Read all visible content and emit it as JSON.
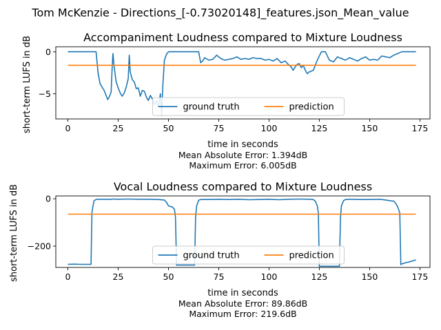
{
  "suptitle": "Tom McKenzie - Directions_[-0.73020148]_features.json_Mean_value",
  "colors": {
    "ground_truth": "#1f77b4",
    "prediction": "#ff7f0e"
  },
  "chart_data": [
    {
      "type": "line",
      "title": "Accompaniment Loudness compared to Mixture Loudness",
      "xlabel": "time in seconds",
      "ylabel": "short-term LUFS in dB",
      "xlim": [
        -6,
        180
      ],
      "ylim": [
        -8,
        0.6
      ],
      "xticks": [
        0,
        25,
        50,
        75,
        100,
        125,
        150,
        175
      ],
      "yticks": [
        0,
        -5
      ],
      "ytick_labels": [
        "0",
        "−5"
      ],
      "legend": "lower-center",
      "errors": [
        "Mean Absolute Error: 1.394dB",
        "Maximum Error: 6.005dB"
      ],
      "series": [
        {
          "name": "ground truth",
          "x": [
            0,
            14,
            15,
            16,
            17,
            18,
            19,
            19.8,
            20.5,
            21.5,
            22,
            22.4,
            23,
            24,
            25,
            26,
            27,
            28,
            29,
            30,
            30.5,
            31,
            32,
            33,
            34,
            35,
            36,
            37,
            38,
            39,
            40,
            41,
            42,
            43,
            44,
            45,
            46,
            46.6,
            47.2,
            48,
            49,
            50,
            55,
            60,
            65,
            66,
            67,
            68,
            70,
            72,
            74,
            76,
            78,
            80,
            82,
            84,
            86,
            88,
            90,
            92,
            94,
            96,
            98,
            100,
            102,
            104,
            106,
            108,
            110,
            111,
            112,
            113,
            114,
            115,
            116,
            117,
            118,
            119,
            120,
            122,
            124,
            126,
            128,
            130,
            132,
            134,
            136,
            138,
            140,
            142,
            144,
            146,
            148,
            150,
            152,
            154,
            156,
            158,
            160,
            162,
            164,
            166,
            170,
            173
          ],
          "y": [
            0,
            0,
            -2.5,
            -3.8,
            -4.2,
            -4.6,
            -5.2,
            -5.7,
            -5.4,
            -4.8,
            -2,
            -0.2,
            -1.8,
            -3.6,
            -4.3,
            -4.9,
            -5.3,
            -4.9,
            -4.2,
            -3.2,
            -0.4,
            -2.4,
            -3.3,
            -3.6,
            -4.4,
            -4.3,
            -5.3,
            -4.6,
            -4.7,
            -5.4,
            -5.8,
            -5.2,
            -5.6,
            -6.3,
            -5.8,
            -6.5,
            -5.0,
            -7.6,
            -4.0,
            -1.0,
            -0.3,
            0,
            0,
            0,
            0,
            -1.3,
            -1.1,
            -0.7,
            -1.0,
            -0.9,
            -0.4,
            -0.8,
            -1.0,
            -0.9,
            -0.8,
            -0.6,
            -0.9,
            -0.8,
            -0.9,
            -0.7,
            -0.8,
            -0.8,
            -1.0,
            -0.9,
            -1.1,
            -0.8,
            -1.3,
            -1.1,
            -1.6,
            -1.8,
            -2.2,
            -1.8,
            -1.5,
            -1.4,
            -1.9,
            -1.6,
            -2.2,
            -2.6,
            -2.4,
            -2.2,
            -1.0,
            0,
            0,
            -1.0,
            -1.2,
            -0.6,
            -0.8,
            -1.0,
            -0.7,
            -0.9,
            -1.1,
            -0.8,
            -0.6,
            -1.0,
            -0.9,
            -1.0,
            -0.5,
            -0.6,
            -0.7,
            -0.4,
            -0.2,
            0,
            0,
            0
          ]
        },
        {
          "name": "prediction",
          "x": [
            0,
            173
          ],
          "y": [
            -1.6,
            -1.6
          ]
        }
      ]
    },
    {
      "type": "line",
      "title": "Vocal Loudness compared to Mixture Loudness",
      "xlabel": "time in seconds",
      "ylabel": "short-term LUFS in dB",
      "xlim": [
        -6,
        180
      ],
      "ylim": [
        -290,
        12
      ],
      "xticks": [
        0,
        25,
        50,
        75,
        100,
        125,
        150,
        175
      ],
      "yticks": [
        0,
        -200
      ],
      "ytick_labels": [
        "0",
        "−200"
      ],
      "legend": "lower-center",
      "errors": [
        "Mean Absolute Error: 89.86dB",
        "Maximum Error: 219.6dB"
      ],
      "series": [
        {
          "name": "ground truth",
          "x": [
            0,
            3,
            6,
            11.5,
            12,
            12.5,
            13,
            14,
            15,
            20,
            21,
            22,
            25,
            30,
            35,
            40,
            45,
            48,
            49,
            50,
            52,
            53,
            53.5,
            54,
            60,
            63,
            63.5,
            64,
            65,
            66,
            70,
            75,
            80,
            85,
            90,
            95,
            100,
            105,
            110,
            115,
            120,
            122,
            123,
            124,
            124.5,
            125,
            130,
            134,
            135,
            135.5,
            136,
            137,
            138,
            140,
            145,
            150,
            155,
            158,
            160,
            162,
            163,
            164,
            165,
            165.5,
            166,
            168,
            170,
            173
          ],
          "y": [
            -277,
            -276,
            -277,
            -277,
            -55,
            -30,
            -8,
            -3,
            -2,
            -2,
            -3,
            -1,
            -2,
            -1,
            -2,
            -2,
            -3,
            -5,
            -15,
            -30,
            -35,
            -45,
            -80,
            -280,
            -280,
            -280,
            -75,
            -30,
            -6,
            -3,
            -3,
            -2,
            -3,
            -2,
            -4,
            -3,
            -2,
            -4,
            -2,
            -1,
            -2,
            -3,
            -10,
            -30,
            -60,
            -285,
            -285,
            -285,
            -285,
            -80,
            -30,
            -8,
            -3,
            -2,
            -3,
            -3,
            -2,
            -5,
            -8,
            -10,
            -20,
            -35,
            -60,
            -278,
            -275,
            -270,
            -266,
            -258
          ]
        },
        {
          "name": "prediction",
          "x": [
            0,
            173
          ],
          "y": [
            -65,
            -65
          ]
        }
      ]
    }
  ]
}
